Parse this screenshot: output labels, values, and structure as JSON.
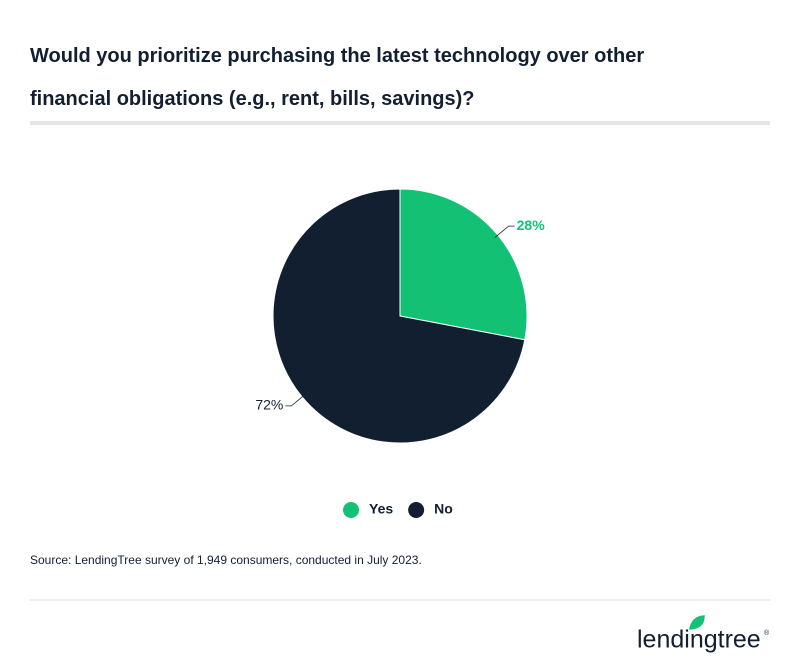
{
  "chart_data": {
    "type": "pie",
    "title": "Would you prioritize purchasing the latest technology over other financial obligations (e.g., rent, bills, savings)?",
    "categories": [
      "Yes",
      "No"
    ],
    "values": [
      28,
      72
    ],
    "value_labels": [
      "28%",
      "72%"
    ],
    "colors": [
      "#12c174",
      "#121f30"
    ],
    "source": "Source: LendingTree survey of 1,949 consumers, conducted in July 2023."
  },
  "logo": {
    "name": "lendingtree",
    "mark": "®"
  }
}
